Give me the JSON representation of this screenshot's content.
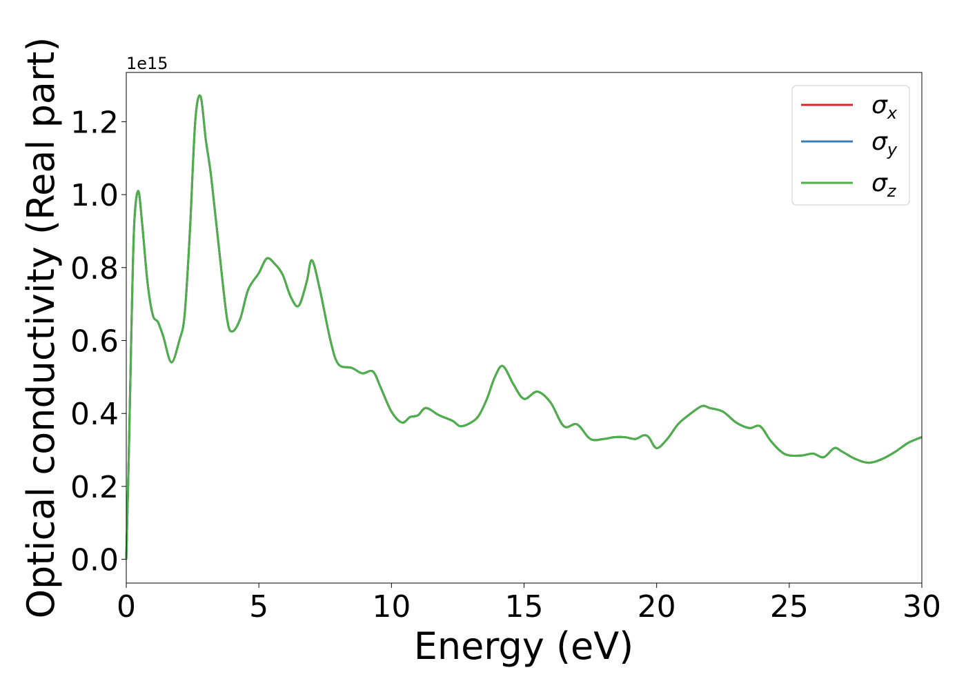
{
  "chart_data": {
    "type": "line",
    "xlabel": "Energy (eV)",
    "ylabel": "Optical conductivity (Real part)",
    "offset_label": "1e15",
    "scale": 1000000000000000.0,
    "xlim": [
      0,
      30
    ],
    "ylim": [
      -0.065,
      1.335
    ],
    "xticks": [
      0,
      5,
      10,
      15,
      20,
      25,
      30
    ],
    "xtick_labels": [
      "0",
      "5",
      "10",
      "15",
      "20",
      "25",
      "30"
    ],
    "yticks": [
      0.0,
      0.2,
      0.4,
      0.6,
      0.8,
      1.0,
      1.2
    ],
    "ytick_labels": [
      "0.0",
      "0.2",
      "0.4",
      "0.6",
      "0.8",
      "1.0",
      "1.2"
    ],
    "grid": false,
    "legend_position": "top-right",
    "x": [
      0,
      0.1,
      0.2,
      0.3,
      0.45,
      0.6,
      0.8,
      1.0,
      1.2,
      1.4,
      1.7,
      2.0,
      2.2,
      2.4,
      2.6,
      2.8,
      3.0,
      3.2,
      3.5,
      3.8,
      4.0,
      4.3,
      4.6,
      5.0,
      5.3,
      5.6,
      5.9,
      6.2,
      6.5,
      6.8,
      7.0,
      7.3,
      7.7,
      8.0,
      8.5,
      8.9,
      9.3,
      9.6,
      10.0,
      10.4,
      10.7,
      11.0,
      11.3,
      11.8,
      12.3,
      12.6,
      13.0,
      13.3,
      13.6,
      13.9,
      14.2,
      14.6,
      15.0,
      15.5,
      16.0,
      16.5,
      17.0,
      17.5,
      18.0,
      18.4,
      18.8,
      19.2,
      19.5,
      19.7,
      20.0,
      20.4,
      20.8,
      21.2,
      21.7,
      22.0,
      22.5,
      23.0,
      23.5,
      23.9,
      24.3,
      24.7,
      25.0,
      25.5,
      25.9,
      26.3,
      26.7,
      27.0,
      27.5,
      28.0,
      28.5,
      29.0,
      29.5,
      30.0
    ],
    "y_scaled": [
      0.0,
      0.3,
      0.65,
      0.92,
      1.01,
      0.92,
      0.76,
      0.67,
      0.65,
      0.61,
      0.54,
      0.6,
      0.67,
      0.9,
      1.2,
      1.27,
      1.15,
      1.05,
      0.85,
      0.66,
      0.625,
      0.66,
      0.74,
      0.785,
      0.825,
      0.81,
      0.78,
      0.72,
      0.695,
      0.76,
      0.82,
      0.74,
      0.6,
      0.535,
      0.525,
      0.51,
      0.515,
      0.47,
      0.405,
      0.375,
      0.39,
      0.395,
      0.415,
      0.395,
      0.38,
      0.365,
      0.375,
      0.395,
      0.44,
      0.5,
      0.53,
      0.48,
      0.44,
      0.46,
      0.43,
      0.365,
      0.37,
      0.33,
      0.33,
      0.335,
      0.335,
      0.33,
      0.34,
      0.335,
      0.305,
      0.33,
      0.37,
      0.395,
      0.42,
      0.415,
      0.405,
      0.375,
      0.36,
      0.365,
      0.325,
      0.295,
      0.285,
      0.285,
      0.29,
      0.28,
      0.305,
      0.295,
      0.275,
      0.265,
      0.275,
      0.295,
      0.32,
      0.335
    ],
    "series": [
      {
        "name": "σx",
        "symbol": "σ",
        "subscript": "x",
        "color": "#d62728"
      },
      {
        "name": "σy",
        "symbol": "σ",
        "subscript": "y",
        "color": "#377eb8"
      },
      {
        "name": "σz",
        "symbol": "σ",
        "subscript": "z",
        "color": "#4daf4a"
      }
    ]
  }
}
